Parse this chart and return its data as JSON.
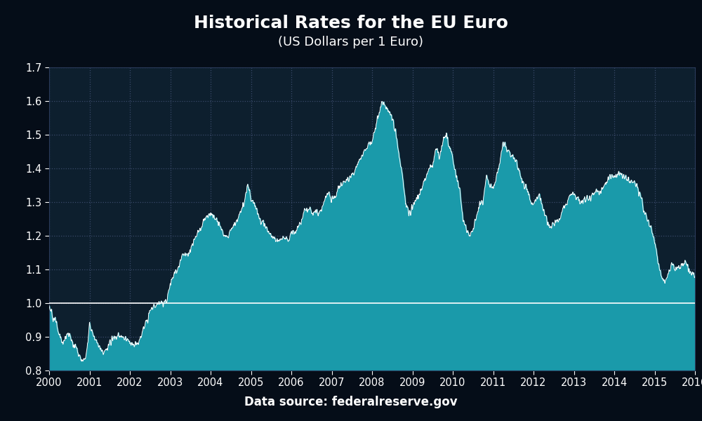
{
  "title": "Historical Rates for the EU Euro",
  "subtitle": "(US Dollars per 1 Euro)",
  "source": "Data source: federalreserve.gov",
  "bg_color": "#050d18",
  "plot_bg_color": "#0d1f2e",
  "fill_color": "#1a9aaa",
  "line_color": "#ffffff",
  "ref_line_color": "#ffffff",
  "ref_line_value": 1.0,
  "ylim": [
    0.8,
    1.7
  ],
  "yticks": [
    0.8,
    0.9,
    1.0,
    1.1,
    1.2,
    1.3,
    1.4,
    1.5,
    1.6,
    1.7
  ],
  "xlim_start": 2000.0,
  "xlim_end": 2016.0,
  "xticks": [
    2000,
    2001,
    2002,
    2003,
    2004,
    2005,
    2006,
    2007,
    2008,
    2009,
    2010,
    2011,
    2012,
    2013,
    2014,
    2015,
    2016
  ],
  "grid_color": "#3a4a6a",
  "grid_style": ":",
  "title_color": "#ffffff",
  "tick_color": "#ffffff",
  "title_fontsize": 18,
  "subtitle_fontsize": 13,
  "source_fontsize": 12,
  "anchors": [
    [
      2000.0,
      0.995
    ],
    [
      2000.04,
      0.975
    ],
    [
      2000.08,
      0.96
    ],
    [
      2000.13,
      0.955
    ],
    [
      2000.17,
      0.94
    ],
    [
      2000.21,
      0.92
    ],
    [
      2000.25,
      0.91
    ],
    [
      2000.33,
      0.88
    ],
    [
      2000.42,
      0.9
    ],
    [
      2000.5,
      0.91
    ],
    [
      2000.58,
      0.88
    ],
    [
      2000.67,
      0.87
    ],
    [
      2000.75,
      0.845
    ],
    [
      2000.83,
      0.823
    ],
    [
      2000.88,
      0.84
    ],
    [
      2000.92,
      0.855
    ],
    [
      2000.96,
      0.88
    ],
    [
      2001.0,
      0.94
    ],
    [
      2001.08,
      0.91
    ],
    [
      2001.17,
      0.89
    ],
    [
      2001.25,
      0.87
    ],
    [
      2001.33,
      0.855
    ],
    [
      2001.42,
      0.86
    ],
    [
      2001.5,
      0.88
    ],
    [
      2001.58,
      0.895
    ],
    [
      2001.67,
      0.9
    ],
    [
      2001.75,
      0.905
    ],
    [
      2001.83,
      0.893
    ],
    [
      2001.92,
      0.89
    ],
    [
      2002.0,
      0.885
    ],
    [
      2002.08,
      0.878
    ],
    [
      2002.17,
      0.875
    ],
    [
      2002.25,
      0.89
    ],
    [
      2002.33,
      0.92
    ],
    [
      2002.42,
      0.95
    ],
    [
      2002.5,
      0.985
    ],
    [
      2002.58,
      0.99
    ],
    [
      2002.67,
      0.995
    ],
    [
      2002.75,
      1.005
    ],
    [
      2002.83,
      0.998
    ],
    [
      2002.92,
      1.01
    ],
    [
      2003.0,
      1.06
    ],
    [
      2003.08,
      1.085
    ],
    [
      2003.17,
      1.1
    ],
    [
      2003.25,
      1.125
    ],
    [
      2003.33,
      1.15
    ],
    [
      2003.42,
      1.14
    ],
    [
      2003.5,
      1.155
    ],
    [
      2003.58,
      1.185
    ],
    [
      2003.67,
      1.205
    ],
    [
      2003.75,
      1.22
    ],
    [
      2003.83,
      1.245
    ],
    [
      2003.92,
      1.26
    ],
    [
      2004.0,
      1.265
    ],
    [
      2004.08,
      1.255
    ],
    [
      2004.17,
      1.245
    ],
    [
      2004.25,
      1.22
    ],
    [
      2004.33,
      1.205
    ],
    [
      2004.42,
      1.195
    ],
    [
      2004.5,
      1.215
    ],
    [
      2004.58,
      1.23
    ],
    [
      2004.67,
      1.245
    ],
    [
      2004.75,
      1.27
    ],
    [
      2004.83,
      1.3
    ],
    [
      2004.92,
      1.355
    ],
    [
      2005.0,
      1.31
    ],
    [
      2005.08,
      1.295
    ],
    [
      2005.17,
      1.265
    ],
    [
      2005.25,
      1.245
    ],
    [
      2005.33,
      1.235
    ],
    [
      2005.42,
      1.215
    ],
    [
      2005.5,
      1.205
    ],
    [
      2005.58,
      1.195
    ],
    [
      2005.67,
      1.185
    ],
    [
      2005.75,
      1.19
    ],
    [
      2005.83,
      1.195
    ],
    [
      2005.92,
      1.185
    ],
    [
      2006.0,
      1.21
    ],
    [
      2006.08,
      1.205
    ],
    [
      2006.17,
      1.225
    ],
    [
      2006.25,
      1.245
    ],
    [
      2006.33,
      1.275
    ],
    [
      2006.42,
      1.28
    ],
    [
      2006.5,
      1.27
    ],
    [
      2006.58,
      1.27
    ],
    [
      2006.67,
      1.265
    ],
    [
      2006.75,
      1.275
    ],
    [
      2006.83,
      1.305
    ],
    [
      2006.92,
      1.33
    ],
    [
      2007.0,
      1.305
    ],
    [
      2007.08,
      1.32
    ],
    [
      2007.17,
      1.34
    ],
    [
      2007.25,
      1.35
    ],
    [
      2007.33,
      1.36
    ],
    [
      2007.42,
      1.37
    ],
    [
      2007.5,
      1.38
    ],
    [
      2007.58,
      1.395
    ],
    [
      2007.67,
      1.42
    ],
    [
      2007.75,
      1.44
    ],
    [
      2007.83,
      1.455
    ],
    [
      2007.92,
      1.47
    ],
    [
      2008.0,
      1.48
    ],
    [
      2008.08,
      1.52
    ],
    [
      2008.17,
      1.56
    ],
    [
      2008.25,
      1.6
    ],
    [
      2008.33,
      1.58
    ],
    [
      2008.42,
      1.57
    ],
    [
      2008.5,
      1.555
    ],
    [
      2008.58,
      1.51
    ],
    [
      2008.67,
      1.43
    ],
    [
      2008.75,
      1.38
    ],
    [
      2008.83,
      1.3
    ],
    [
      2008.92,
      1.265
    ],
    [
      2009.0,
      1.285
    ],
    [
      2009.08,
      1.305
    ],
    [
      2009.17,
      1.325
    ],
    [
      2009.25,
      1.35
    ],
    [
      2009.33,
      1.375
    ],
    [
      2009.42,
      1.4
    ],
    [
      2009.5,
      1.41
    ],
    [
      2009.58,
      1.46
    ],
    [
      2009.67,
      1.43
    ],
    [
      2009.75,
      1.48
    ],
    [
      2009.83,
      1.5
    ],
    [
      2009.92,
      1.46
    ],
    [
      2010.0,
      1.43
    ],
    [
      2010.08,
      1.375
    ],
    [
      2010.17,
      1.34
    ],
    [
      2010.25,
      1.25
    ],
    [
      2010.33,
      1.215
    ],
    [
      2010.42,
      1.2
    ],
    [
      2010.5,
      1.22
    ],
    [
      2010.58,
      1.25
    ],
    [
      2010.67,
      1.3
    ],
    [
      2010.75,
      1.295
    ],
    [
      2010.83,
      1.38
    ],
    [
      2010.92,
      1.35
    ],
    [
      2011.0,
      1.34
    ],
    [
      2011.08,
      1.375
    ],
    [
      2011.17,
      1.42
    ],
    [
      2011.25,
      1.48
    ],
    [
      2011.33,
      1.455
    ],
    [
      2011.42,
      1.445
    ],
    [
      2011.5,
      1.44
    ],
    [
      2011.58,
      1.415
    ],
    [
      2011.67,
      1.375
    ],
    [
      2011.75,
      1.35
    ],
    [
      2011.83,
      1.34
    ],
    [
      2011.92,
      1.305
    ],
    [
      2012.0,
      1.295
    ],
    [
      2012.08,
      1.32
    ],
    [
      2012.17,
      1.31
    ],
    [
      2012.25,
      1.27
    ],
    [
      2012.33,
      1.245
    ],
    [
      2012.42,
      1.22
    ],
    [
      2012.5,
      1.235
    ],
    [
      2012.58,
      1.24
    ],
    [
      2012.67,
      1.25
    ],
    [
      2012.75,
      1.29
    ],
    [
      2012.83,
      1.295
    ],
    [
      2012.92,
      1.32
    ],
    [
      2013.0,
      1.325
    ],
    [
      2013.08,
      1.31
    ],
    [
      2013.17,
      1.3
    ],
    [
      2013.25,
      1.305
    ],
    [
      2013.33,
      1.31
    ],
    [
      2013.42,
      1.315
    ],
    [
      2013.5,
      1.325
    ],
    [
      2013.58,
      1.33
    ],
    [
      2013.67,
      1.33
    ],
    [
      2013.75,
      1.345
    ],
    [
      2013.83,
      1.37
    ],
    [
      2013.92,
      1.375
    ],
    [
      2014.0,
      1.37
    ],
    [
      2014.08,
      1.385
    ],
    [
      2014.17,
      1.38
    ],
    [
      2014.25,
      1.375
    ],
    [
      2014.33,
      1.365
    ],
    [
      2014.42,
      1.36
    ],
    [
      2014.5,
      1.36
    ],
    [
      2014.58,
      1.34
    ],
    [
      2014.67,
      1.31
    ],
    [
      2014.75,
      1.265
    ],
    [
      2014.83,
      1.245
    ],
    [
      2014.92,
      1.225
    ],
    [
      2015.0,
      1.18
    ],
    [
      2015.08,
      1.13
    ],
    [
      2015.17,
      1.075
    ],
    [
      2015.25,
      1.06
    ],
    [
      2015.33,
      1.08
    ],
    [
      2015.42,
      1.12
    ],
    [
      2015.5,
      1.095
    ],
    [
      2015.58,
      1.1
    ],
    [
      2015.67,
      1.11
    ],
    [
      2015.75,
      1.125
    ],
    [
      2015.83,
      1.105
    ],
    [
      2015.92,
      1.085
    ],
    [
      2016.0,
      1.087
    ]
  ]
}
